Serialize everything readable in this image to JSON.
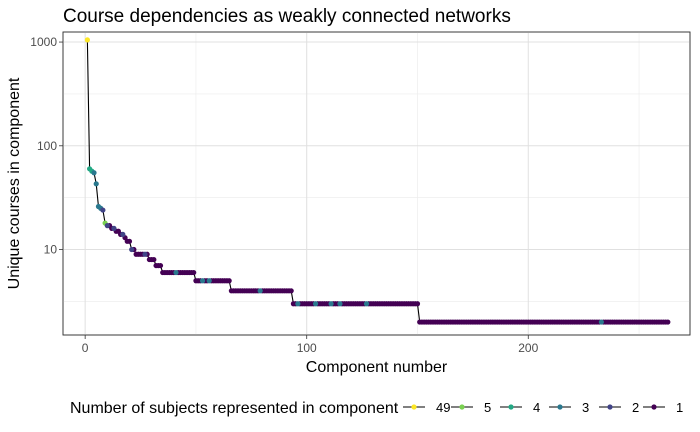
{
  "chart_data": {
    "type": "line",
    "title": "Course dependencies as weakly connected networks",
    "xlabel": "Component number",
    "ylabel": "Unique courses in component",
    "y_scale": "log10",
    "xlim": [
      -10,
      273
    ],
    "ylim": [
      1.5,
      1250
    ],
    "x_ticks": [
      0,
      100,
      200
    ],
    "y_ticks": [
      10,
      100,
      1000
    ],
    "x_tick_labels": [
      "0",
      "100",
      "200"
    ],
    "y_tick_labels": [
      "10",
      "100",
      "1000"
    ],
    "grid": true,
    "legend_position": "bottom",
    "legend": {
      "title": "Number of subjects represented in component",
      "items": [
        {
          "label": "49",
          "color": "#FDE725"
        },
        {
          "label": "5",
          "color": "#7AD151"
        },
        {
          "label": "4",
          "color": "#22A884"
        },
        {
          "label": "3",
          "color": "#2A788E"
        },
        {
          "label": "2",
          "color": "#414487"
        },
        {
          "label": "1",
          "color": "#440154"
        }
      ]
    },
    "steps": [
      {
        "from": 1,
        "to": 1,
        "y": 1050
      },
      {
        "from": 2,
        "to": 2,
        "y": 60
      },
      {
        "from": 3,
        "to": 3,
        "y": 57
      },
      {
        "from": 4,
        "to": 4,
        "y": 55
      },
      {
        "from": 5,
        "to": 5,
        "y": 43
      },
      {
        "from": 6,
        "to": 6,
        "y": 26
      },
      {
        "from": 7,
        "to": 7,
        "y": 25
      },
      {
        "from": 8,
        "to": 8,
        "y": 24
      },
      {
        "from": 9,
        "to": 9,
        "y": 18
      },
      {
        "from": 10,
        "to": 11,
        "y": 17
      },
      {
        "from": 12,
        "to": 13,
        "y": 16
      },
      {
        "from": 14,
        "to": 15,
        "y": 15
      },
      {
        "from": 16,
        "to": 17,
        "y": 14
      },
      {
        "from": 18,
        "to": 18,
        "y": 13
      },
      {
        "from": 19,
        "to": 20,
        "y": 12
      },
      {
        "from": 21,
        "to": 22,
        "y": 10
      },
      {
        "from": 23,
        "to": 28,
        "y": 9
      },
      {
        "from": 29,
        "to": 31,
        "y": 8
      },
      {
        "from": 32,
        "to": 34,
        "y": 7
      },
      {
        "from": 35,
        "to": 49,
        "y": 6
      },
      {
        "from": 50,
        "to": 65,
        "y": 5
      },
      {
        "from": 66,
        "to": 93,
        "y": 4
      },
      {
        "from": 94,
        "to": 150,
        "y": 3
      },
      {
        "from": 151,
        "to": 263,
        "y": 2
      }
    ],
    "color_overrides": [
      {
        "x": 1,
        "y": 1050,
        "group": "49"
      },
      {
        "x": 2,
        "y": 60,
        "group": "4"
      },
      {
        "x": 3,
        "y": 57,
        "group": "4"
      },
      {
        "x": 4,
        "y": 55,
        "group": "3"
      },
      {
        "x": 5,
        "y": 43,
        "group": "3"
      },
      {
        "x": 6,
        "y": 26,
        "group": "3"
      },
      {
        "x": 7,
        "y": 25,
        "group": "3"
      },
      {
        "x": 8,
        "y": 24,
        "group": "2"
      },
      {
        "x": 9,
        "y": 18,
        "group": "5"
      },
      {
        "x": 10,
        "y": 17,
        "group": "2"
      },
      {
        "x": 13,
        "y": 16,
        "group": "2"
      },
      {
        "x": 17,
        "y": 14,
        "group": "2"
      },
      {
        "x": 21,
        "y": 10,
        "group": "2"
      },
      {
        "x": 27,
        "y": 9,
        "group": "2"
      },
      {
        "x": 41,
        "y": 6,
        "group": "3"
      },
      {
        "x": 53,
        "y": 5,
        "group": "3"
      },
      {
        "x": 56,
        "y": 5,
        "group": "3"
      },
      {
        "x": 79,
        "y": 4,
        "group": "3"
      },
      {
        "x": 96,
        "y": 3,
        "group": "3"
      },
      {
        "x": 104,
        "y": 3,
        "group": "3"
      },
      {
        "x": 111,
        "y": 3,
        "group": "3"
      },
      {
        "x": 115,
        "y": 3,
        "group": "3"
      },
      {
        "x": 127,
        "y": 3,
        "group": "3"
      },
      {
        "x": 233,
        "y": 2,
        "group": "3"
      }
    ],
    "default_group": "1"
  }
}
